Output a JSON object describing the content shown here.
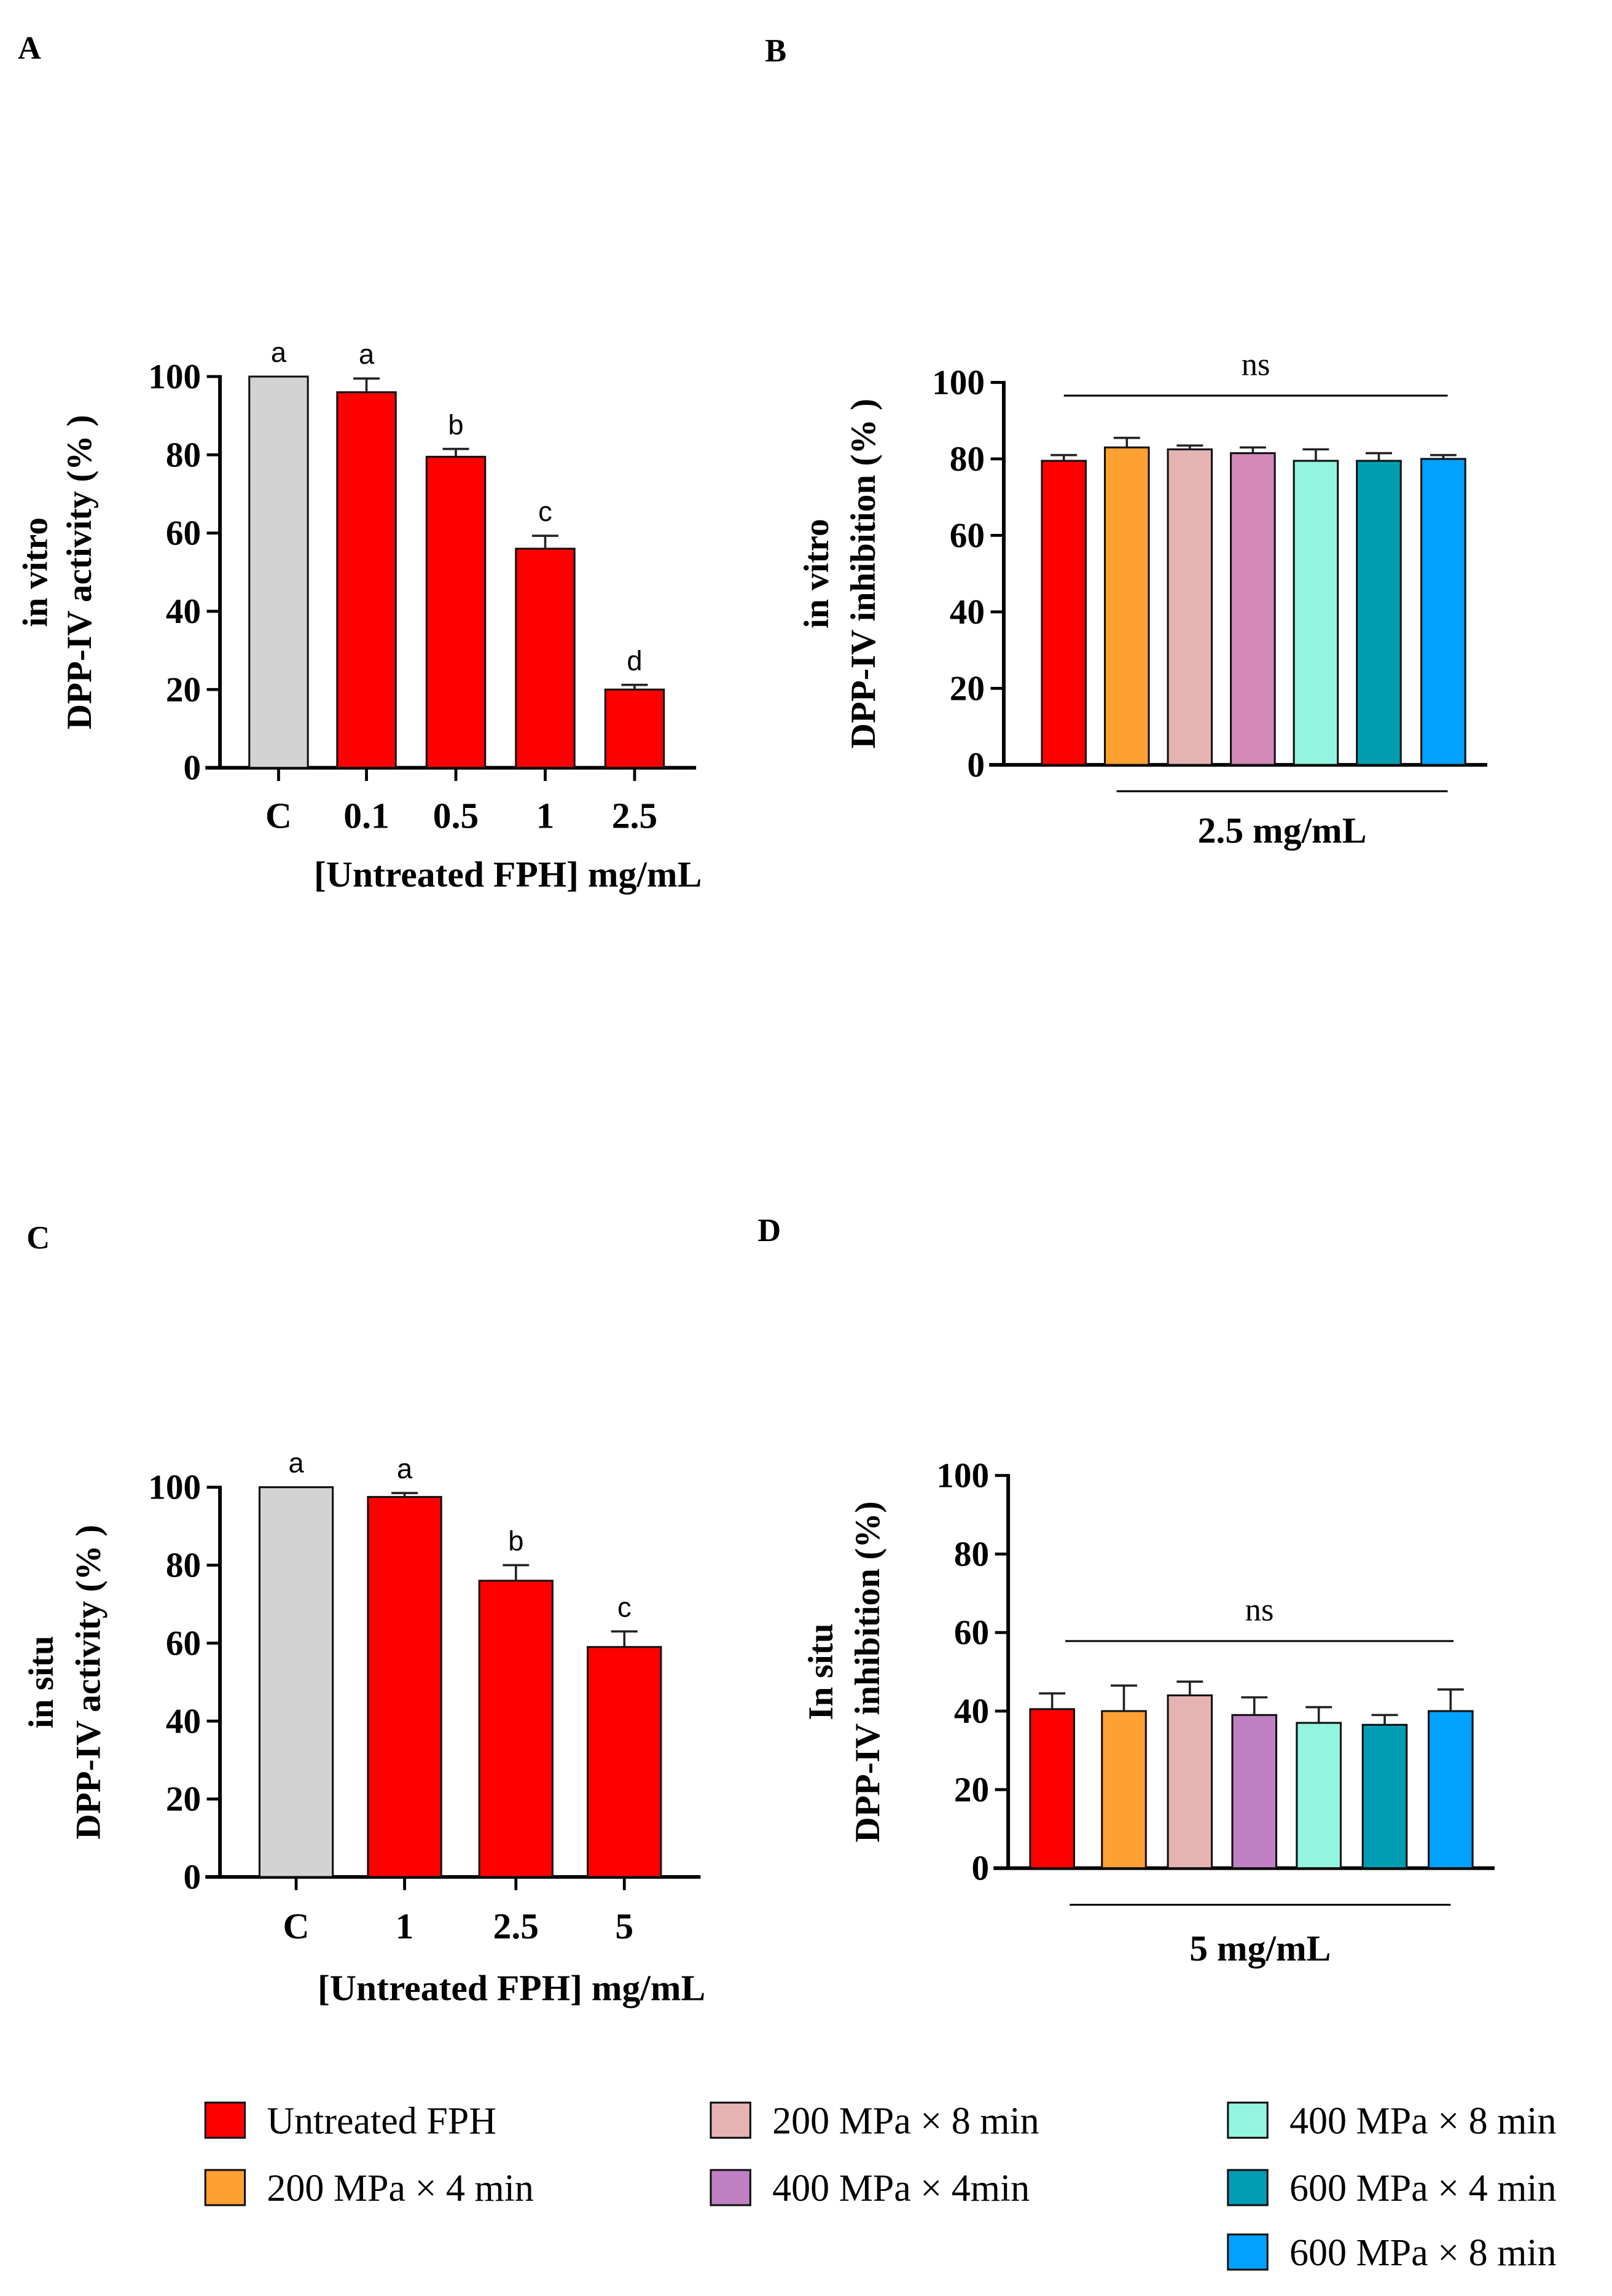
{
  "chart_data": [
    {
      "panel": "A",
      "type": "bar",
      "ylabel_line1": "in vitro",
      "ylabel_line2": "DPP-IV activity (% )",
      "xlabel": "[Untreated FPH] mg/mL",
      "categories": [
        "C",
        "0.1",
        "0.5",
        "1",
        "2.5"
      ],
      "values": [
        100,
        96,
        79.5,
        56,
        20
      ],
      "errors": [
        0,
        3.5,
        2,
        3.3,
        1.2
      ],
      "letters": [
        "a",
        "a",
        "b",
        "c",
        "d"
      ],
      "colors": [
        "#d3d3d3",
        "#ff0000",
        "#ff0000",
        "#ff0000",
        "#ff0000"
      ],
      "ylim": [
        0,
        100
      ],
      "yticks": [
        "0",
        "20",
        "40",
        "60",
        "80",
        "100"
      ]
    },
    {
      "panel": "B",
      "type": "bar",
      "ylabel_line1": "in vitro",
      "ylabel_line2": "DPP-IV inhibition (% )",
      "categories": [
        "Untreated FPH",
        "200 MPa × 4 min",
        "200 MPa × 8 min",
        "400 MPa × 4min",
        "400 MPa × 8 min",
        "600 MPa × 4 min",
        "600 MPa × 8 min"
      ],
      "values": [
        79.5,
        83,
        82.5,
        81.5,
        79.5,
        79.5,
        80
      ],
      "errors": [
        1.5,
        2.5,
        1,
        1.5,
        3,
        2,
        1
      ],
      "colors": [
        "#ff0000",
        "#ffa033",
        "#e6b3b3",
        "#d48ab8",
        "#93f5df",
        "#009fb0",
        "#00a2ff"
      ],
      "significance": "ns",
      "group_label": "2.5 mg/mL",
      "ylim": [
        0,
        100
      ],
      "yticks": [
        "0",
        "20",
        "40",
        "60",
        "80",
        "100"
      ]
    },
    {
      "panel": "C",
      "type": "bar",
      "ylabel_line1": "in situ",
      "ylabel_line2": "DPP-IV activity (% )",
      "xlabel": "[Untreated FPH] mg/mL",
      "categories": [
        "C",
        "1",
        "2.5",
        "5"
      ],
      "values": [
        100,
        97.5,
        76,
        59
      ],
      "errors": [
        0,
        1,
        4,
        4
      ],
      "letters": [
        "a",
        "a",
        "b",
        "c"
      ],
      "colors": [
        "#d3d3d3",
        "#ff0000",
        "#ff0000",
        "#ff0000"
      ],
      "ylim": [
        0,
        100
      ],
      "yticks": [
        "0",
        "20",
        "40",
        "60",
        "80",
        "100"
      ]
    },
    {
      "panel": "D",
      "type": "bar",
      "ylabel_line1": "In situ",
      "ylabel_line2": "DPP-IV inhibition (%)",
      "categories": [
        "Untreated FPH",
        "200 MPa × 4 min",
        "200 MPa × 8 min",
        "400 MPa × 4min",
        "400 MPa × 8 min",
        "600 MPa × 4 min",
        "600 MPa × 8 min"
      ],
      "values": [
        40.5,
        40,
        44,
        39,
        37,
        36.5,
        40
      ],
      "errors": [
        4,
        6.5,
        3.5,
        4.5,
        4,
        2.5,
        5.5
      ],
      "colors": [
        "#ff0000",
        "#ffa033",
        "#e6b3b3",
        "#c080c4",
        "#93f5df",
        "#009db5",
        "#00a2ff"
      ],
      "significance": "ns",
      "group_label": "5 mg/mL",
      "ylim": [
        0,
        100
      ],
      "yticks": [
        "0",
        "20",
        "40",
        "60",
        "80",
        "100"
      ]
    }
  ],
  "legend": [
    {
      "label": "Untreated FPH",
      "color": "#ff0000"
    },
    {
      "label": "200 MPa × 4 min",
      "color": "#ffa033"
    },
    {
      "label": "200 MPa × 8 min",
      "color": "#e6b3b3"
    },
    {
      "label": "400 MPa × 4min",
      "color": "#c080c4"
    },
    {
      "label": "400 MPa × 8 min",
      "color": "#93f5df"
    },
    {
      "label": "600 MPa × 4 min",
      "color": "#009db5"
    },
    {
      "label": "600 MPa × 8 min",
      "color": "#00a2ff"
    }
  ]
}
